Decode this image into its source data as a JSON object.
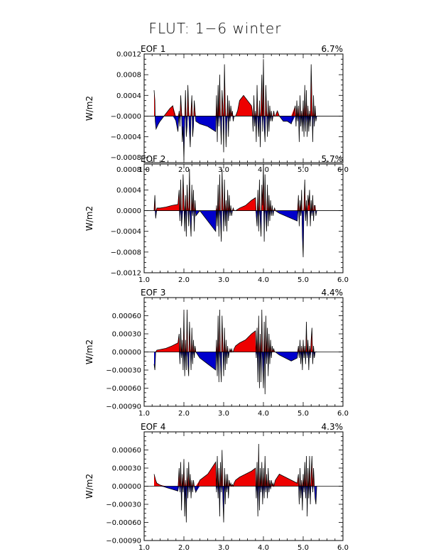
{
  "page_title": "FLUT: 1−6 winter",
  "chart_data": [
    {
      "type": "area",
      "label": "EOF 1",
      "variance": "6.7%",
      "ylabel": "W/m2",
      "xlim": [
        1.0,
        6.0
      ],
      "xticks": [
        "1.0",
        "2.0",
        "3.0",
        "4.0",
        "5.0",
        "6.0"
      ],
      "ylim": [
        -0.0009,
        0.0012
      ],
      "yticks": [
        -0.0008,
        -0.0004,
        0.0,
        0.0004,
        0.0008,
        0.0012
      ],
      "ytick_labels": [
        "−0.0008",
        "−0.0004",
        "−0.0000",
        "0.0004",
        "0.0008",
        "0.0012"
      ],
      "x": [
        1.25,
        1.27,
        1.28,
        1.3,
        1.33,
        1.36,
        1.4,
        1.45,
        1.5,
        1.55,
        1.6,
        1.65,
        1.72,
        1.8,
        1.85,
        1.88,
        1.9,
        1.92,
        1.94,
        1.96,
        1.98,
        2.0,
        2.02,
        2.04,
        2.06,
        2.08,
        2.1,
        2.12,
        2.14,
        2.16,
        2.18,
        2.2,
        2.22,
        2.24,
        2.26,
        2.28,
        2.3,
        2.4,
        2.6,
        2.8,
        2.82,
        2.84,
        2.86,
        2.88,
        2.9,
        2.92,
        2.94,
        2.96,
        2.98,
        3.0,
        3.02,
        3.04,
        3.06,
        3.08,
        3.1,
        3.12,
        3.14,
        3.16,
        3.18,
        3.2,
        3.22,
        3.24,
        3.26,
        3.3,
        3.35,
        3.4,
        3.5,
        3.6,
        3.7,
        3.72,
        3.74,
        3.76,
        3.78,
        3.8,
        3.82,
        3.84,
        3.86,
        3.88,
        3.9,
        3.92,
        3.94,
        3.96,
        3.98,
        4.0,
        4.02,
        4.04,
        4.06,
        4.08,
        4.1,
        4.12,
        4.14,
        4.16,
        4.18,
        4.2,
        4.22,
        4.24,
        4.26,
        4.28,
        4.3,
        4.35,
        4.4,
        4.5,
        4.6,
        4.7,
        4.8,
        4.82,
        4.84,
        4.86,
        4.88,
        4.9,
        4.92,
        4.94,
        4.96,
        4.98,
        5.0,
        5.02,
        5.04,
        5.06,
        5.08,
        5.1,
        5.12,
        5.14,
        5.16,
        5.18,
        5.2,
        5.22,
        5.24,
        5.26,
        5.28,
        5.3,
        5.32,
        5.34
      ],
      "y": [
        0.0005,
        0.0003,
        -0.0001,
        -0.00025,
        -0.0002,
        -0.00015,
        -0.0001,
        -5e-05,
        0.0,
        5e-05,
        0.0001,
        0.00015,
        0.0002,
        -0.0001,
        -0.0003,
        0.0001,
        -0.0002,
        0.0004,
        0.0001,
        -0.0005,
        -0.0002,
        -0.00085,
        -0.0001,
        0.0005,
        -0.0004,
        -0.0002,
        0.0006,
        0.0001,
        -0.0003,
        -0.0006,
        0.0001,
        0.0004,
        -0.0004,
        -0.0002,
        0.0003,
        0.0001,
        -0.0001,
        -0.00015,
        -0.0002,
        -0.0003,
        0.0004,
        -0.0005,
        0.0006,
        -0.0002,
        0.0008,
        -0.0001,
        -0.00055,
        0.0005,
        0.0002,
        -0.0007,
        0.001,
        0.0002,
        -0.0006,
        -0.0001,
        0.0004,
        -0.0004,
        0.0003,
        -0.0001,
        0.0002,
        0.0,
        0.0001,
        -0.0001,
        0.0,
        0.0,
        0.0001,
        0.0003,
        0.0004,
        0.0003,
        0.0002,
        0.0001,
        -0.0003,
        0.0004,
        -0.0002,
        0.0001,
        -0.0005,
        0.0006,
        -0.0001,
        -0.0004,
        0.0003,
        -0.0006,
        0.0002,
        0.0008,
        -0.0003,
        0.0011,
        -0.0002,
        -0.0005,
        0.0006,
        0.0001,
        -0.0004,
        0.0003,
        -0.0003,
        0.0002,
        -0.0001,
        0.0001,
        -0.0001,
        0.0,
        0.0001,
        0.0,
        0.0,
        0.0001,
        0.0,
        -0.0001,
        -0.0001,
        -0.00015,
        0.0002,
        -0.0002,
        0.0003,
        -0.0001,
        0.0002,
        -0.0005,
        0.0004,
        -0.0002,
        0.0001,
        -0.0003,
        0.0003,
        -0.0004,
        0.0006,
        -0.0003,
        0.0005,
        -0.0004,
        0.0002,
        -0.0003,
        0.0001,
        -0.0002,
        0.001,
        0.0003,
        -0.0005,
        0.0004,
        -0.0002,
        0.0002,
        -0.0001,
        0.0
      ]
    },
    {
      "type": "area",
      "label": "EOF 2",
      "variance": "5.7%",
      "ylabel": "W/m2",
      "xlim": [
        1.0,
        6.0
      ],
      "xticks": [
        "1.0",
        "2.0",
        "3.0",
        "4.0",
        "5.0",
        "6.0"
      ],
      "ylim": [
        -0.0012,
        0.0009
      ],
      "yticks": [
        -0.0012,
        -0.0008,
        -0.0004,
        0.0,
        0.0004,
        0.0008
      ],
      "ytick_labels": [
        "−0.0012",
        "−0.0008",
        "−0.0004",
        "0.0000",
        "0.0004",
        "0.0008"
      ],
      "x": [
        1.25,
        1.27,
        1.29,
        1.32,
        1.4,
        1.55,
        1.7,
        1.85,
        1.88,
        1.9,
        1.92,
        1.94,
        1.96,
        1.98,
        2.0,
        2.02,
        2.04,
        2.06,
        2.08,
        2.1,
        2.12,
        2.14,
        2.16,
        2.18,
        2.2,
        2.22,
        2.24,
        2.26,
        2.28,
        2.3,
        2.4,
        2.6,
        2.8,
        2.82,
        2.84,
        2.86,
        2.88,
        2.9,
        2.92,
        2.94,
        2.96,
        2.98,
        3.0,
        3.02,
        3.04,
        3.06,
        3.08,
        3.1,
        3.12,
        3.14,
        3.16,
        3.18,
        3.2,
        3.22,
        3.24,
        3.26,
        3.3,
        3.4,
        3.55,
        3.7,
        3.8,
        3.82,
        3.84,
        3.86,
        3.88,
        3.9,
        3.92,
        3.94,
        3.96,
        3.98,
        4.0,
        4.02,
        4.04,
        4.06,
        4.08,
        4.1,
        4.12,
        4.14,
        4.16,
        4.18,
        4.2,
        4.22,
        4.24,
        4.26,
        4.28,
        4.3,
        4.4,
        4.55,
        4.7,
        4.85,
        4.88,
        4.9,
        4.92,
        4.94,
        4.96,
        4.98,
        5.0,
        5.02,
        5.04,
        5.06,
        5.08,
        5.1,
        5.12,
        5.14,
        5.16,
        5.18,
        5.2,
        5.22,
        5.24,
        5.26,
        5.28,
        5.3,
        5.32,
        5.34
      ],
      "y": [
        0.0,
        0.0003,
        -0.00015,
        5e-05,
        5e-05,
        7e-05,
        0.0001,
        0.00012,
        0.0004,
        -0.0002,
        0.0006,
        -0.0003,
        -0.0001,
        0.0007,
        0.0002,
        -0.0004,
        0.0003,
        -0.0005,
        0.0005,
        0.0001,
        -0.0003,
        0.0008,
        -0.0002,
        -0.0005,
        0.0005,
        -0.0001,
        0.0004,
        -0.0004,
        0.0002,
        -0.0001,
        0.0,
        -0.0002,
        -0.0004,
        0.0001,
        -0.0003,
        0.0005,
        -0.0005,
        0.0007,
        -0.0002,
        -0.0006,
        0.0008,
        0.0001,
        -0.0004,
        0.0006,
        -0.0003,
        0.0002,
        -0.0004,
        0.0004,
        -0.0002,
        0.0003,
        -0.0001,
        0.0001,
        -0.0001,
        0.0,
        5e-05,
        0.0,
        0.0,
        5e-05,
        0.0001,
        0.0002,
        0.00025,
        -0.0001,
        -0.0003,
        0.0004,
        -0.0004,
        0.0006,
        -0.0002,
        -0.0005,
        0.0005,
        0.0001,
        0.0009,
        -0.0006,
        0.0007,
        -0.0001,
        -0.0004,
        0.0005,
        -0.0003,
        0.0003,
        -0.0002,
        0.0002,
        -0.0001,
        0.0001,
        -0.0001,
        0.0,
        5e-05,
        0.0,
        -5e-05,
        -0.0001,
        -0.00015,
        -0.0002,
        0.0003,
        -0.0003,
        0.0002,
        -0.0001,
        0.0004,
        -0.0005,
        -0.0009,
        0.0001,
        0.0006,
        -0.0002,
        0.0002,
        -0.0003,
        0.0003,
        0.0001,
        0.0004,
        -0.0003,
        0.0002,
        -0.0001,
        0.0003,
        -0.0002,
        0.0001,
        0.0001,
        -0.0001,
        0.0
      ]
    },
    {
      "type": "area",
      "label": "EOF 3",
      "variance": "4.4%",
      "ylabel": "W/m2",
      "xlim": [
        1.0,
        6.0
      ],
      "xticks": [
        "1.0",
        "2.0",
        "3.0",
        "4.0",
        "5.0",
        "6.0"
      ],
      "ylim": [
        -0.0009,
        0.0009
      ],
      "yticks": [
        -0.0009,
        -0.0006,
        -0.0003,
        0.0,
        0.0003,
        0.0006
      ],
      "ytick_labels": [
        "−0.00090",
        "−0.00060",
        "−0.00030",
        "0.00000",
        "0.00030",
        "0.00060"
      ],
      "x": [
        1.25,
        1.27,
        1.29,
        1.32,
        1.4,
        1.55,
        1.7,
        1.85,
        1.88,
        1.9,
        1.92,
        1.94,
        1.96,
        1.98,
        2.0,
        2.02,
        2.04,
        2.06,
        2.08,
        2.1,
        2.12,
        2.14,
        2.16,
        2.18,
        2.2,
        2.22,
        2.24,
        2.26,
        2.28,
        2.3,
        2.4,
        2.6,
        2.8,
        2.82,
        2.84,
        2.86,
        2.88,
        2.9,
        2.92,
        2.94,
        2.96,
        2.98,
        3.0,
        3.02,
        3.04,
        3.06,
        3.08,
        3.1,
        3.12,
        3.14,
        3.16,
        3.18,
        3.2,
        3.22,
        3.24,
        3.26,
        3.3,
        3.4,
        3.55,
        3.7,
        3.8,
        3.82,
        3.84,
        3.86,
        3.88,
        3.9,
        3.92,
        3.94,
        3.96,
        3.98,
        4.0,
        4.02,
        4.04,
        4.06,
        4.08,
        4.1,
        4.12,
        4.14,
        4.16,
        4.18,
        4.2,
        4.22,
        4.24,
        4.26,
        4.28,
        4.3,
        4.4,
        4.55,
        4.7,
        4.85,
        4.88,
        4.9,
        4.92,
        4.94,
        4.96,
        4.98,
        5.0,
        5.02,
        5.04,
        5.06,
        5.08,
        5.1,
        5.12,
        5.14,
        5.16,
        5.18,
        5.2,
        5.22,
        5.24,
        5.26,
        5.28,
        5.3,
        5.32,
        5.34
      ],
      "y": [
        -0.0002,
        -0.0003,
        0.0,
        3e-05,
        4e-05,
        6e-05,
        0.0001,
        0.00015,
        0.0003,
        -0.0002,
        0.0004,
        -0.0001,
        0.0002,
        -0.0003,
        0.0007,
        -0.0004,
        0.0002,
        -0.0003,
        0.0007,
        -0.0002,
        -0.0004,
        0.0005,
        0.0001,
        -0.0003,
        0.0004,
        -0.0002,
        0.0002,
        -0.0001,
        0.0001,
        0.0,
        -0.0001,
        -0.0002,
        -0.0003,
        0.0002,
        -0.0004,
        0.0006,
        -0.0005,
        0.0007,
        -0.0002,
        -0.0005,
        0.0006,
        0.0001,
        -0.0004,
        0.0004,
        -0.0003,
        0.0002,
        -0.0002,
        0.0001,
        -0.0001,
        0.0,
        5e-05,
        0.0,
        5e-05,
        0.0,
        0.0,
        5e-05,
        0.0001,
        0.00015,
        0.0002,
        0.0003,
        0.00035,
        -0.0001,
        0.0004,
        -0.0005,
        0.0006,
        -0.0006,
        0.0003,
        -0.0005,
        0.0007,
        -0.0002,
        -0.0006,
        0.0005,
        -0.0007,
        0.0006,
        -0.0002,
        0.0004,
        -0.0004,
        0.0003,
        -0.0002,
        0.0002,
        -0.0001,
        0.0001,
        0.0,
        5e-05,
        0.0,
        0.0,
        -5e-05,
        -0.0001,
        -0.00015,
        -0.0001,
        0.0001,
        -0.0001,
        0.0002,
        -0.0002,
        0.0001,
        -0.0003,
        0.0002,
        -0.0001,
        0.0001,
        -0.0002,
        0.0005,
        -0.0001,
        0.0002,
        -0.0003,
        0.0001,
        -0.0001,
        0.0002,
        0.0004,
        -0.0002,
        0.0001,
        -0.0001,
        0.0,
        0.0,
        0.0
      ]
    },
    {
      "type": "area",
      "label": "EOF 4",
      "variance": "4.3%",
      "ylabel": "W/m2",
      "xlim": [
        1.0,
        6.0
      ],
      "xticks": [
        "1.0",
        "2.0",
        "3.0",
        "4.0",
        "5.0",
        "6.0"
      ],
      "ylim": [
        -0.0009,
        0.0009
      ],
      "yticks": [
        -0.0009,
        -0.0006,
        -0.0003,
        0.0,
        0.0003,
        0.0006
      ],
      "ytick_labels": [
        "−0.00090",
        "−0.00060",
        "−0.00030",
        "0.00000",
        "0.00030",
        "0.00060"
      ],
      "x": [
        1.25,
        1.27,
        1.29,
        1.32,
        1.4,
        1.55,
        1.7,
        1.85,
        1.88,
        1.9,
        1.92,
        1.94,
        1.96,
        1.98,
        2.0,
        2.02,
        2.04,
        2.06,
        2.08,
        2.1,
        2.12,
        2.14,
        2.16,
        2.18,
        2.2,
        2.22,
        2.24,
        2.26,
        2.28,
        2.3,
        2.4,
        2.6,
        2.8,
        2.82,
        2.84,
        2.86,
        2.88,
        2.9,
        2.92,
        2.94,
        2.96,
        2.98,
        3.0,
        3.02,
        3.04,
        3.06,
        3.08,
        3.1,
        3.12,
        3.14,
        3.16,
        3.18,
        3.2,
        3.22,
        3.24,
        3.26,
        3.3,
        3.4,
        3.55,
        3.7,
        3.8,
        3.82,
        3.84,
        3.86,
        3.88,
        3.9,
        3.92,
        3.94,
        3.96,
        3.98,
        4.0,
        4.02,
        4.04,
        4.06,
        4.08,
        4.1,
        4.12,
        4.14,
        4.16,
        4.18,
        4.2,
        4.22,
        4.24,
        4.26,
        4.28,
        4.3,
        4.4,
        4.55,
        4.7,
        4.85,
        4.88,
        4.9,
        4.92,
        4.94,
        4.96,
        4.98,
        5.0,
        5.02,
        5.04,
        5.06,
        5.08,
        5.1,
        5.12,
        5.14,
        5.16,
        5.18,
        5.2,
        5.22,
        5.24,
        5.26,
        5.28,
        5.3,
        5.32,
        5.34
      ],
      "y": [
        0.0002,
        0.00015,
        0.0001,
        5e-05,
        2e-05,
        -2e-05,
        -5e-05,
        -8e-05,
        0.0003,
        -0.0001,
        0.0004,
        -0.0004,
        0.0002,
        -0.0001,
        0.00045,
        -0.0005,
        0.0001,
        -0.0006,
        0.0003,
        -0.0002,
        0.0004,
        -0.0001,
        0.0002,
        -0.0002,
        0.0001,
        -0.0001,
        0.0001,
        0.0,
        -5e-05,
        -0.0001,
        0.0001,
        0.0002,
        0.0004,
        -0.0001,
        0.0005,
        -0.0002,
        0.0003,
        -0.0005,
        0.0004,
        -0.0001,
        0.0006,
        -0.0002,
        -0.0006,
        0.0003,
        -0.0003,
        0.0002,
        -0.0001,
        0.0002,
        -0.0002,
        0.0001,
        0.0,
        5e-05,
        0.0,
        3e-05,
        0.0,
        5e-05,
        0.0001,
        0.00015,
        0.0002,
        0.00025,
        0.0003,
        -0.0002,
        0.0004,
        -0.0005,
        0.0007,
        -0.0004,
        0.0003,
        -0.0001,
        0.0004,
        -0.0003,
        0.0003,
        -0.0002,
        0.0005,
        -0.0001,
        0.0002,
        -0.0002,
        0.0003,
        -0.0001,
        0.0001,
        -5e-05,
        0.0001,
        0.0,
        5e-05,
        0.0,
        5e-05,
        0.0001,
        0.0002,
        0.00015,
        0.0001,
        5e-05,
        0.0002,
        -0.0003,
        0.0003,
        -0.0002,
        0.0001,
        -0.0004,
        0.0002,
        -0.0001,
        0.0004,
        -0.0002,
        0.0005,
        -0.0005,
        0.0003,
        -0.0002,
        0.0005,
        -0.0003,
        0.0002,
        0.0005,
        -0.0001,
        0.0003,
        0.0,
        -0.0002,
        -0.0003,
        0.0
      ]
    }
  ]
}
